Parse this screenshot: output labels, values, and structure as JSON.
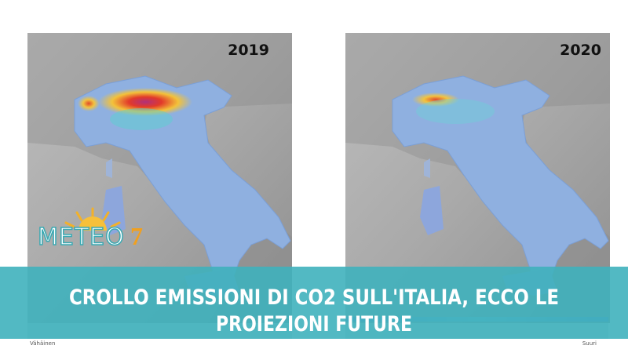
{
  "panels": [
    {
      "year": "2019"
    },
    {
      "year": "2020"
    }
  ],
  "legend": {
    "low": "Vähäinen",
    "high": "Suuri"
  },
  "logo": {
    "text": "METEO",
    "number": "7"
  },
  "headline": {
    "line1": "CROLLO EMISSIONI DI CO2 SULL'ITALIA, ECCO LE",
    "line2": "PROIEZIONI FUTURE"
  }
}
